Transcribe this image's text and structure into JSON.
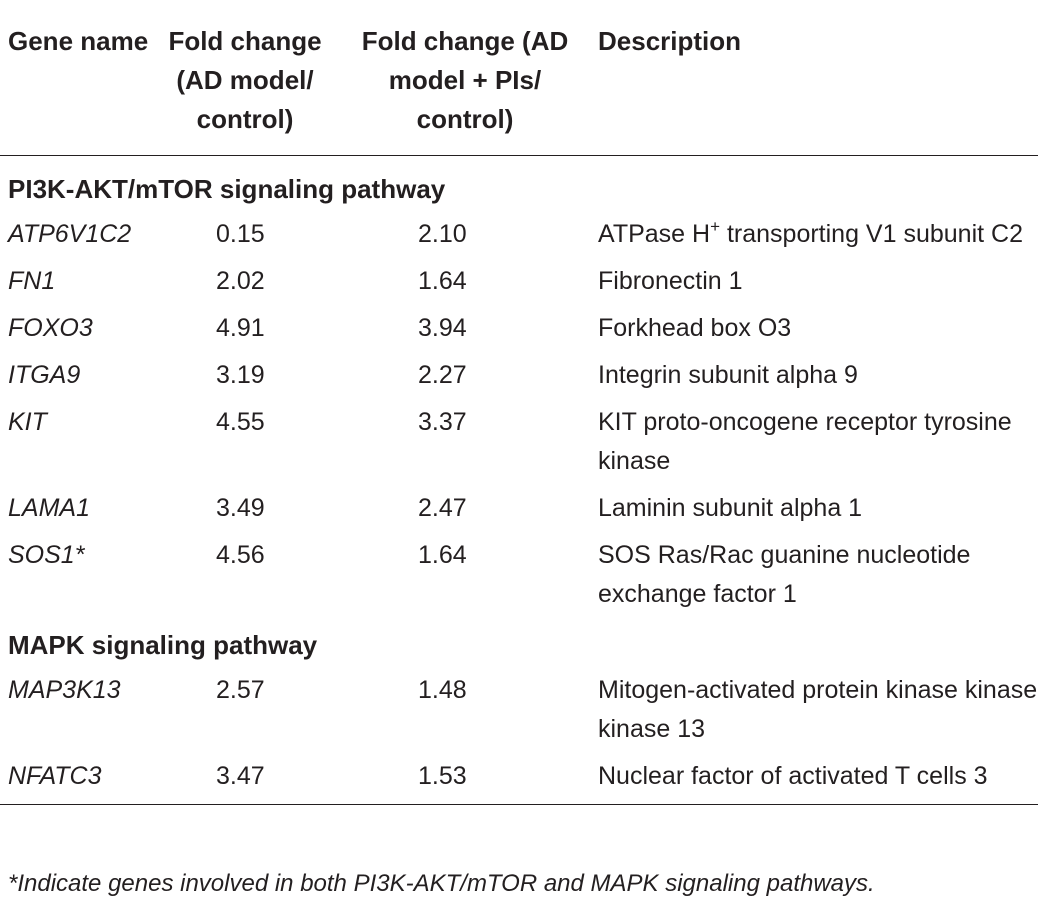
{
  "header": {
    "gene_name": "Gene name",
    "fold_change_ad": "Fold change (AD model/ control)",
    "fold_change_ad_pis": "Fold change (AD model + PIs/ control)",
    "description": "Description"
  },
  "sections": [
    {
      "title": "PI3K-AKT/mTOR signaling pathway",
      "rows": [
        {
          "gene": "ATP6V1C2",
          "fc_ad": "0.15",
          "fc_pis": "2.10",
          "desc_pre": "ATPase H",
          "desc_sup": "+",
          "desc_post": " transporting V1 subunit C2"
        },
        {
          "gene": "FN1",
          "fc_ad": "2.02",
          "fc_pis": "1.64",
          "desc": "Fibronectin 1"
        },
        {
          "gene": "FOXO3",
          "fc_ad": "4.91",
          "fc_pis": "3.94",
          "desc": "Forkhead box O3"
        },
        {
          "gene": "ITGA9",
          "fc_ad": "3.19",
          "fc_pis": "2.27",
          "desc": "Integrin subunit alpha 9"
        },
        {
          "gene": "KIT",
          "fc_ad": "4.55",
          "fc_pis": "3.37",
          "desc": "KIT proto-oncogene receptor tyrosine kinase"
        },
        {
          "gene": "LAMA1",
          "fc_ad": "3.49",
          "fc_pis": "2.47",
          "desc": "Laminin subunit alpha 1"
        },
        {
          "gene": "SOS1*",
          "fc_ad": "4.56",
          "fc_pis": "1.64",
          "desc": "SOS Ras/Rac guanine nucleotide exchange factor 1"
        }
      ]
    },
    {
      "title": "MAPK signaling pathway",
      "rows": [
        {
          "gene": "MAP3K13",
          "fc_ad": "2.57",
          "fc_pis": "1.48",
          "desc": "Mitogen-activated protein kinase kinase kinase 13"
        },
        {
          "gene": "NFATC3",
          "fc_ad": "3.47",
          "fc_pis": "1.53",
          "desc": "Nuclear factor of activated T cells 3"
        }
      ]
    }
  ],
  "footnote": "*Indicate genes involved in both PI3K-AKT/mTOR and MAPK signaling pathways."
}
